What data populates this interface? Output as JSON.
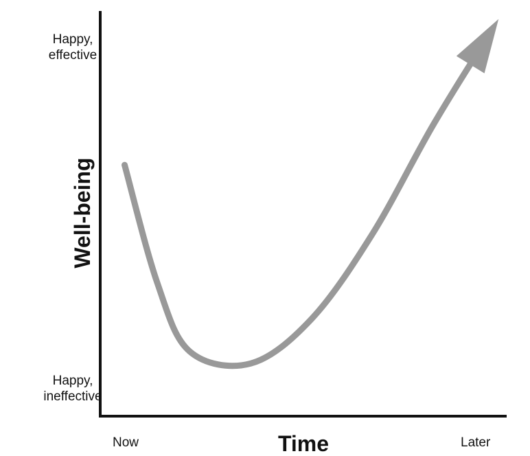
{
  "chart_data": {
    "type": "line",
    "title": "",
    "xlabel": "Time",
    "ylabel": "Well-being",
    "x_tick_labels": [
      "Now",
      "Later"
    ],
    "y_tick_labels": [
      {
        "line1": "Happy,",
        "line2": "ineffective"
      },
      {
        "line1": "Happy,",
        "line2": "effective"
      }
    ],
    "xlim": [
      0,
      1
    ],
    "ylim": [
      0,
      1
    ],
    "grid": false,
    "legend": "none",
    "series": [
      {
        "x": [
          0.06,
          0.14,
          0.22,
          0.37,
          0.52,
          0.67,
          0.82,
          0.98
        ],
        "y": [
          0.62,
          0.33,
          0.16,
          0.13,
          0.24,
          0.45,
          0.72,
          0.98
        ],
        "arrowhead_at_end": true
      }
    ],
    "colors": {
      "curve": "#999999",
      "axis": "#111111",
      "text": "#111111"
    }
  }
}
